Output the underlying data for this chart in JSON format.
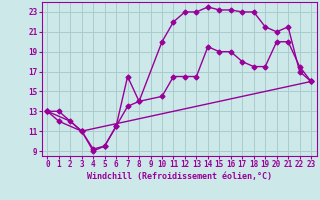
{
  "background_color": "#cce8e8",
  "grid_color": "#aacccc",
  "line_color": "#990099",
  "xlabel": "Windchill (Refroidissement éolien,°C)",
  "xlim_min": -0.5,
  "xlim_max": 23.5,
  "ylim_min": 8.5,
  "ylim_max": 24.0,
  "yticks": [
    9,
    11,
    13,
    15,
    17,
    19,
    21,
    23
  ],
  "xticks": [
    0,
    1,
    2,
    3,
    4,
    5,
    6,
    7,
    8,
    9,
    10,
    11,
    12,
    13,
    14,
    15,
    16,
    17,
    18,
    19,
    20,
    21,
    22,
    23
  ],
  "curve1_x": [
    0,
    1,
    3,
    4,
    5,
    6,
    7,
    8,
    10,
    11,
    12,
    13,
    14,
    15,
    16,
    17,
    18,
    19,
    20,
    21,
    22,
    23
  ],
  "curve1_y": [
    13,
    13,
    11,
    9,
    9.5,
    11.5,
    16.5,
    14,
    20,
    22,
    23,
    23,
    23.5,
    23.2,
    23.2,
    23,
    23,
    21.5,
    21,
    21.5,
    17,
    16
  ],
  "curve2_x": [
    0,
    1,
    3,
    4,
    5,
    6,
    7,
    8,
    10,
    11,
    12,
    13,
    14,
    15,
    16,
    17,
    18,
    19,
    20,
    21,
    22,
    23
  ],
  "curve2_y": [
    13,
    12,
    11,
    9.2,
    9.5,
    11.5,
    13.5,
    14,
    14.5,
    16.5,
    16.5,
    16.5,
    19.5,
    19,
    19,
    18,
    17.5,
    17.5,
    20,
    20,
    17.5,
    16
  ],
  "curve3_x": [
    0,
    2,
    3,
    23
  ],
  "curve3_y": [
    13,
    12,
    11,
    16
  ],
  "marker": "D",
  "markersize": 2.5,
  "linewidth": 1.0,
  "tick_fontsize": 5.5,
  "xlabel_fontsize": 6.0
}
